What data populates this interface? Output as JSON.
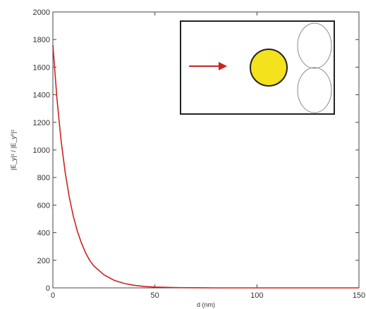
{
  "chart_data": {
    "type": "line",
    "xlabel": "d (nm)",
    "ylabel": "|E_y|² / |E_y⁰|²",
    "xlim": [
      0,
      150
    ],
    "ylim": [
      0,
      2000
    ],
    "x_ticks": [
      0,
      50,
      100,
      150
    ],
    "y_ticks": [
      0,
      200,
      400,
      600,
      800,
      1000,
      1200,
      1400,
      1600,
      1800,
      2000
    ],
    "grid": false,
    "series": [
      {
        "color": "#cc2222",
        "x": [
          0,
          2,
          4,
          6,
          8,
          10,
          12,
          14,
          16,
          18,
          20,
          25,
          30,
          35,
          40,
          45,
          50,
          60,
          70,
          80,
          100,
          120,
          150
        ],
        "y": [
          1760,
          1370,
          1070,
          840,
          660,
          520,
          410,
          325,
          255,
          200,
          160,
          95,
          55,
          32,
          18,
          10,
          6,
          2,
          1,
          0,
          0,
          0,
          0
        ]
      }
    ],
    "inset": {
      "arrow_color": "#cc2222",
      "particle_color": "#f3e21c",
      "lobe_color": "#888888"
    }
  }
}
